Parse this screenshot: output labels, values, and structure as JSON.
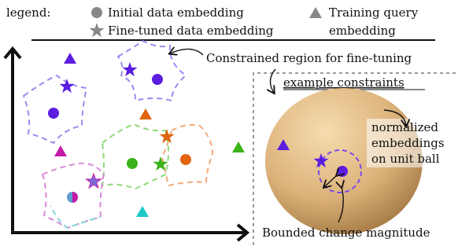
{
  "legend": {
    "label": "legend:",
    "items": [
      {
        "lines": [
          "Initial data embedding"
        ]
      },
      {
        "lines": [
          "Fine-tuned data embedding"
        ]
      },
      {
        "lines": [
          "Training query",
          "embedding"
        ]
      }
    ]
  },
  "callouts": {
    "region": "Constrained region for fine-tuning",
    "example": "example constraints",
    "unit_ball": [
      "normalized",
      "embeddings",
      "on unit ball"
    ],
    "magnitude": "Bounded change magnitude"
  }
}
